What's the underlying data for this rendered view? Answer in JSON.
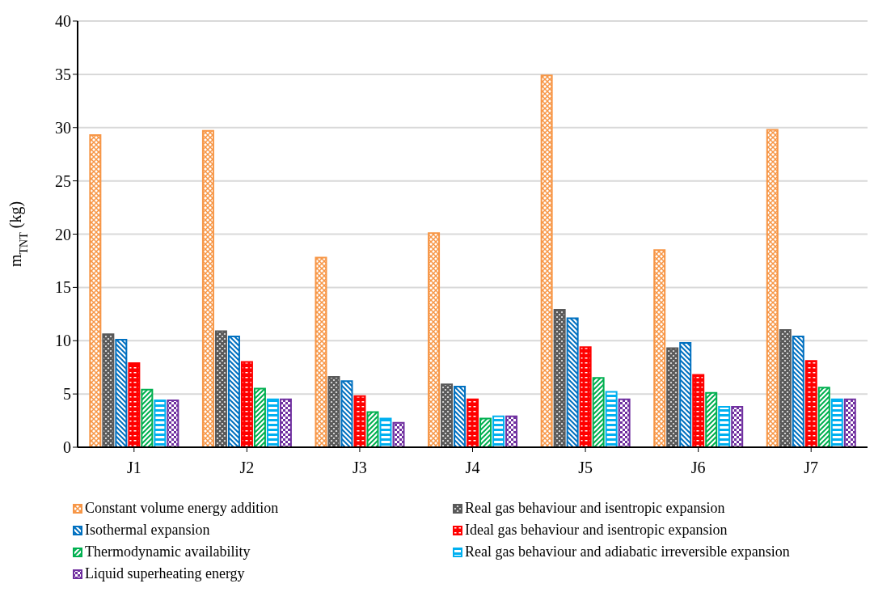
{
  "chart_data": {
    "type": "bar",
    "ylabel": "m$_{TNT}$ (kg)",
    "categories": [
      "J1",
      "J2",
      "J3",
      "J4",
      "J5",
      "J6",
      "J7"
    ],
    "series": [
      {
        "name": "Constant volume energy addition",
        "color": "#f79646",
        "values": [
          29.3,
          29.7,
          17.8,
          20.1,
          34.9,
          18.5,
          29.8
        ]
      },
      {
        "name": "Real gas behaviour and isentropic expansion",
        "color": "#595959",
        "values": [
          10.6,
          10.9,
          6.6,
          5.9,
          12.9,
          9.3,
          11.0
        ]
      },
      {
        "name": "Isothermal expansion",
        "color": "#0070c0",
        "values": [
          10.1,
          10.4,
          6.2,
          5.7,
          12.1,
          9.8,
          10.4
        ]
      },
      {
        "name": "Ideal gas behaviour and isentropic expansion",
        "color": "#ff0000",
        "values": [
          7.9,
          8.0,
          4.8,
          4.5,
          9.4,
          6.8,
          8.1
        ]
      },
      {
        "name": "Thermodynamic availability",
        "color": "#00b050",
        "values": [
          5.4,
          5.5,
          3.3,
          2.7,
          6.5,
          5.1,
          5.6
        ]
      },
      {
        "name": "Real gas behaviour and adiabatic irreversible expansion",
        "color": "#00b0f0",
        "values": [
          4.4,
          4.5,
          2.7,
          2.9,
          5.2,
          3.8,
          4.5
        ]
      },
      {
        "name": "Liquid superheating energy",
        "color": "#7030a0",
        "values": [
          4.4,
          4.5,
          2.3,
          2.9,
          4.5,
          3.8,
          4.5
        ]
      }
    ],
    "ylim": [
      0,
      40
    ],
    "yticks": [
      0,
      5,
      10,
      15,
      20,
      25,
      30,
      35,
      40
    ],
    "grid": "y",
    "legend": "bottom"
  }
}
